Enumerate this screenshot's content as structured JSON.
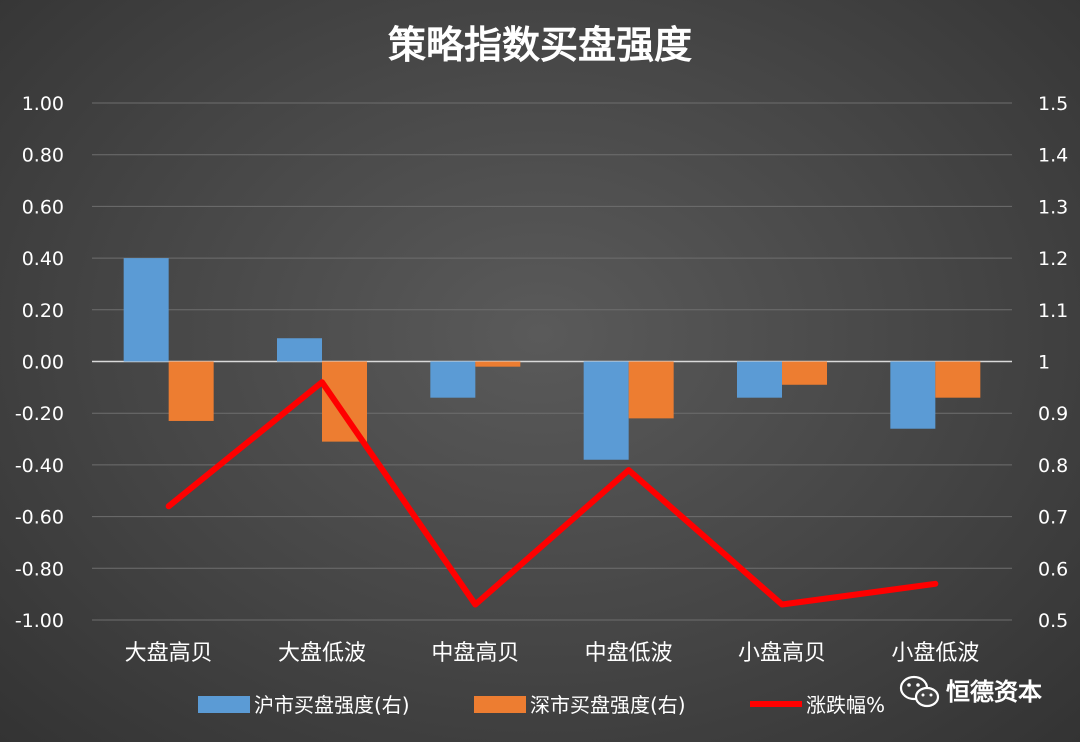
{
  "chart_data": {
    "type": "bar",
    "title": "策略指数买盘强度",
    "categories": [
      "大盘高贝",
      "大盘低波",
      "中盘高贝",
      "中盘低波",
      "小盘高贝",
      "小盘低波"
    ],
    "left_axis": {
      "ylim": [
        -1.0,
        1.0
      ],
      "ticks": [
        "1.00",
        "0.80",
        "0.60",
        "0.40",
        "0.20",
        "0.00",
        "-0.20",
        "-0.40",
        "-0.60",
        "-0.80",
        "-1.00"
      ]
    },
    "right_axis": {
      "ylim": [
        0.5,
        1.5
      ],
      "ticks": [
        "1.5",
        "1.4",
        "1.3",
        "1.2",
        "1.1",
        "1",
        "0.9",
        "0.8",
        "0.7",
        "0.6",
        "0.5"
      ]
    },
    "series": [
      {
        "name": "沪市买盘强度(右)",
        "type": "bar",
        "axis": "left",
        "color": "#5b9bd5",
        "values": [
          0.4,
          0.09,
          -0.14,
          -0.38,
          -0.14,
          -0.26
        ]
      },
      {
        "name": "深市买盘强度(右)",
        "type": "bar",
        "axis": "left",
        "color": "#ed7d31",
        "values": [
          -0.23,
          -0.31,
          -0.02,
          -0.22,
          -0.09,
          -0.14
        ]
      },
      {
        "name": "涨跌幅%",
        "type": "line",
        "axis": "right",
        "color": "#ff0000",
        "values": [
          0.72,
          0.96,
          0.53,
          0.79,
          0.53,
          0.57
        ]
      }
    ],
    "grid": true,
    "legend_position": "bottom"
  },
  "brand": {
    "text": "恒德资本",
    "icon": "wechat-icon"
  }
}
